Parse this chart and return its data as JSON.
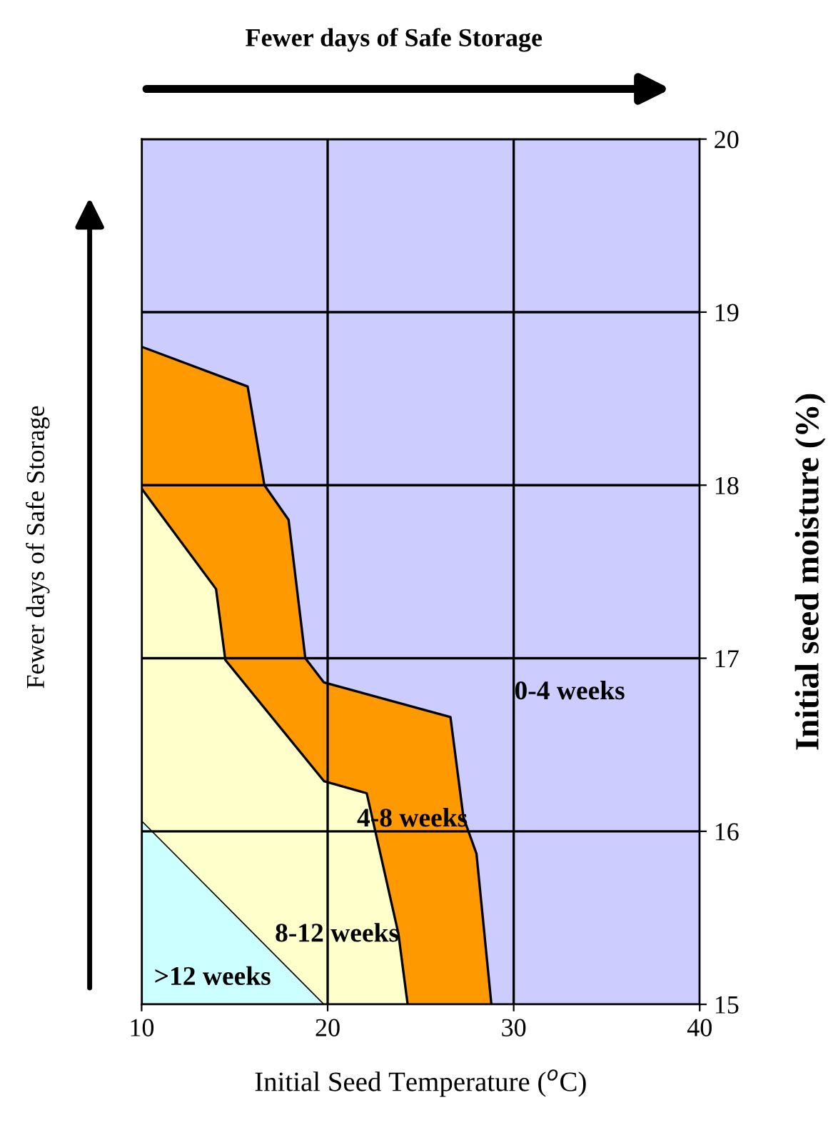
{
  "chart_data": {
    "type": "area",
    "xlabel": "Initial Seed Temperature ($^{o}$C)",
    "ylabel": "Initial seed moisture (%)",
    "xlim": [
      10,
      40
    ],
    "xticks": [
      10,
      20,
      30,
      40
    ],
    "ylim": [
      15,
      20
    ],
    "yticks": [
      15,
      16,
      17,
      18,
      19,
      20
    ],
    "grid": true,
    "series": [
      {
        "color": "#ccffff",
        "x": [
          10,
          19.8
        ],
        "values": [
          16.06,
          15
        ]
      },
      {
        "color": "#ffffcc",
        "x": [
          10,
          14.0,
          14.5,
          19.8,
          22.1,
          23.8,
          24.3
        ],
        "values": [
          17.98,
          17.4,
          16.99,
          16.29,
          16.22,
          15.41,
          15
        ]
      },
      {
        "color": "#ff9900",
        "x": [
          10,
          15.7,
          16.6,
          17.9,
          18.8,
          19.8,
          26.6,
          27.3,
          28.0,
          28.8
        ],
        "values": [
          18.8,
          18.57,
          18.0,
          17.8,
          17.0,
          16.86,
          16.66,
          16.08,
          15.87,
          15
        ]
      }
    ],
    "bands": [
      {
        "axis": "y",
        "from": 15,
        "to": 20,
        "color": "#ccccff"
      }
    ],
    "annotations": [
      "Fewer days of Safe Storage",
      "Fewer days of Safe Storage",
      "0-4 weeks",
      "4-8 weeks",
      "8-12 weeks",
      ">12 weeks"
    ]
  }
}
